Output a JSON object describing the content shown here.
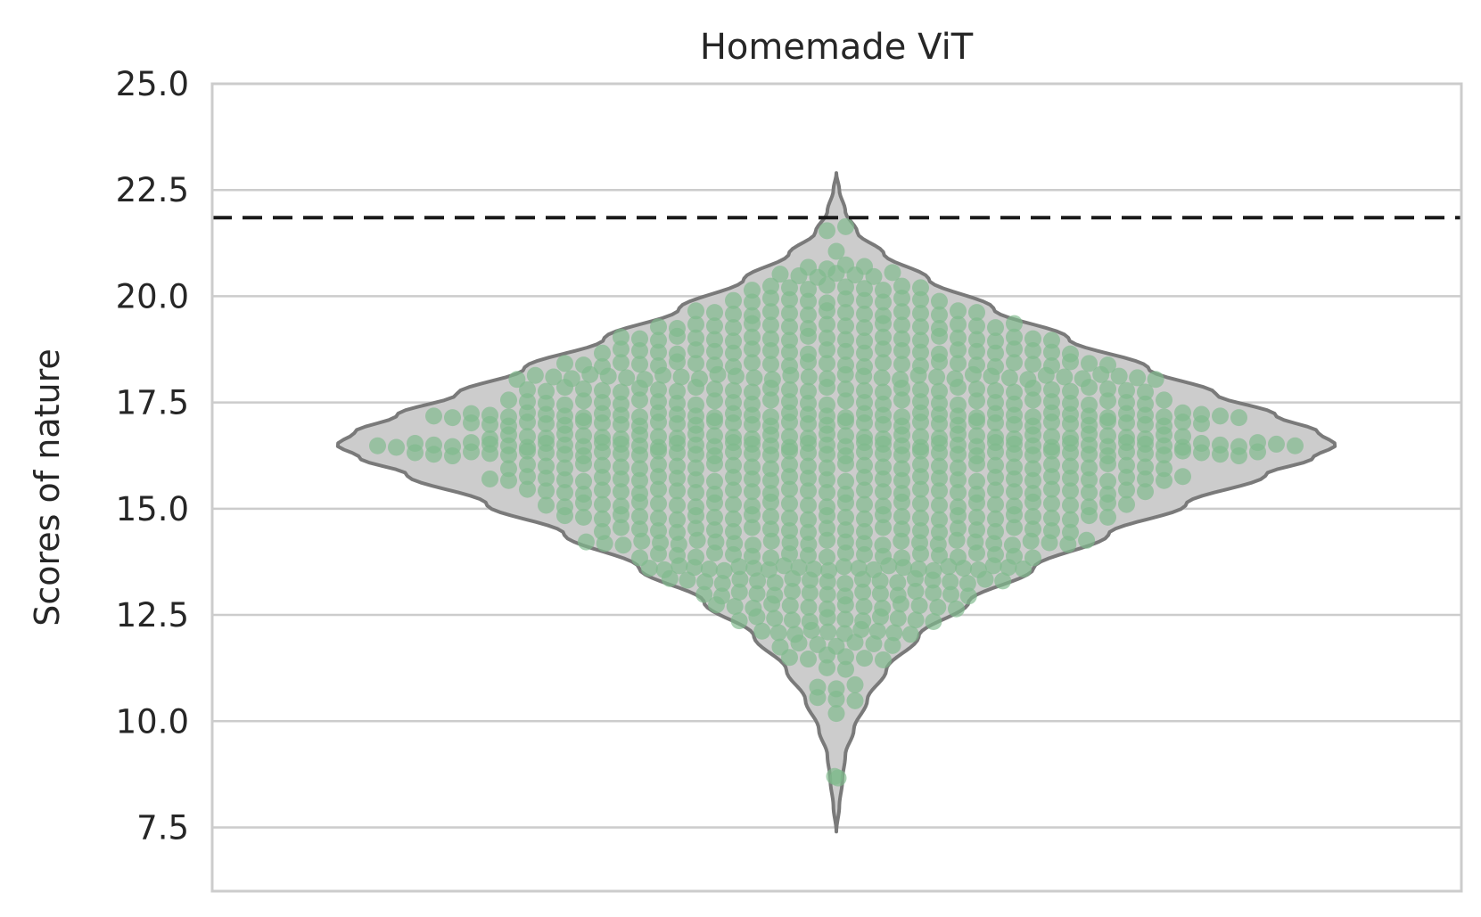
{
  "chart_data": {
    "type": "violin",
    "title": "Homemade ViT",
    "xlabel": "",
    "ylabel": "Scores of nature",
    "ylim": [
      6.0,
      25.0
    ],
    "yticks": [
      "7.5",
      "10.0",
      "12.5",
      "15.0",
      "17.5",
      "20.0",
      "22.5",
      "25.0"
    ],
    "grid": "horizontal",
    "reference_line": {
      "y": 21.85,
      "style": "dashed",
      "color": "#1a1a1a"
    },
    "violin": {
      "min": 7.4,
      "max": 22.9,
      "fill": "#cccccc",
      "stroke": "#7a7a7a",
      "density_profile": [
        {
          "y": 7.4,
          "w": 0.0
        },
        {
          "y": 8.0,
          "w": 0.006
        },
        {
          "y": 8.6,
          "w": 0.012
        },
        {
          "y": 9.2,
          "w": 0.018
        },
        {
          "y": 9.8,
          "w": 0.035
        },
        {
          "y": 10.5,
          "w": 0.062
        },
        {
          "y": 11.2,
          "w": 0.1
        },
        {
          "y": 12.0,
          "w": 0.165
        },
        {
          "y": 12.8,
          "w": 0.265
        },
        {
          "y": 13.6,
          "w": 0.395
        },
        {
          "y": 14.4,
          "w": 0.545
        },
        {
          "y": 15.1,
          "w": 0.7
        },
        {
          "y": 15.8,
          "w": 0.86
        },
        {
          "y": 16.2,
          "w": 0.955
        },
        {
          "y": 16.5,
          "w": 1.0
        },
        {
          "y": 16.8,
          "w": 0.965
        },
        {
          "y": 17.2,
          "w": 0.88
        },
        {
          "y": 17.7,
          "w": 0.76
        },
        {
          "y": 18.3,
          "w": 0.625
        },
        {
          "y": 19.0,
          "w": 0.465
        },
        {
          "y": 19.7,
          "w": 0.315
        },
        {
          "y": 20.4,
          "w": 0.185
        },
        {
          "y": 21.0,
          "w": 0.095
        },
        {
          "y": 21.5,
          "w": 0.042
        },
        {
          "y": 22.0,
          "w": 0.018
        },
        {
          "y": 22.5,
          "w": 0.006
        },
        {
          "y": 22.9,
          "w": 0.0
        }
      ]
    },
    "swarm_color": "#7fba8c",
    "swarm_row_counts": [
      {
        "y": 8.7,
        "n": 2
      },
      {
        "y": 10.2,
        "n": 1
      },
      {
        "y": 10.5,
        "n": 3
      },
      {
        "y": 10.8,
        "n": 3
      },
      {
        "y": 11.2,
        "n": 2
      },
      {
        "y": 11.5,
        "n": 6
      },
      {
        "y": 11.8,
        "n": 7
      },
      {
        "y": 12.1,
        "n": 10
      },
      {
        "y": 12.4,
        "n": 12
      },
      {
        "y": 12.7,
        "n": 14
      },
      {
        "y": 13.0,
        "n": 16
      },
      {
        "y": 13.3,
        "n": 20
      },
      {
        "y": 13.6,
        "n": 26
      },
      {
        "y": 13.9,
        "n": 22
      },
      {
        "y": 14.2,
        "n": 28
      },
      {
        "y": 14.5,
        "n": 26
      },
      {
        "y": 14.8,
        "n": 30
      },
      {
        "y": 15.1,
        "n": 32
      },
      {
        "y": 15.4,
        "n": 34
      },
      {
        "y": 15.7,
        "n": 38
      },
      {
        "y": 16.0,
        "n": 36
      },
      {
        "y": 16.3,
        "n": 46
      },
      {
        "y": 16.5,
        "n": 50
      },
      {
        "y": 16.7,
        "n": 38
      },
      {
        "y": 17.0,
        "n": 40
      },
      {
        "y": 17.2,
        "n": 44
      },
      {
        "y": 17.5,
        "n": 36
      },
      {
        "y": 17.8,
        "n": 34
      },
      {
        "y": 18.1,
        "n": 36
      },
      {
        "y": 18.4,
        "n": 30
      },
      {
        "y": 18.7,
        "n": 26
      },
      {
        "y": 19.0,
        "n": 24
      },
      {
        "y": 19.3,
        "n": 20
      },
      {
        "y": 19.6,
        "n": 16
      },
      {
        "y": 19.9,
        "n": 12
      },
      {
        "y": 20.2,
        "n": 10
      },
      {
        "y": 20.5,
        "n": 7
      },
      {
        "y": 20.7,
        "n": 4
      },
      {
        "y": 21.0,
        "n": 1
      },
      {
        "y": 21.6,
        "n": 2
      }
    ]
  }
}
